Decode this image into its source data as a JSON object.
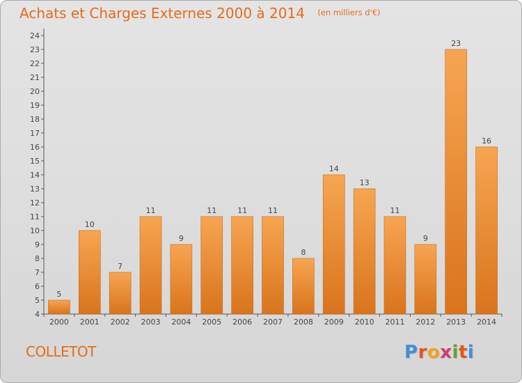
{
  "header": {
    "title": "Achats et Charges Externes 2000 à 2014",
    "subtitle": "(en milliers d'€)"
  },
  "footer": {
    "commune": "COLLETOT",
    "logo": {
      "letters": [
        "P",
        "r",
        "o",
        "x",
        "i",
        "t",
        "i"
      ]
    }
  },
  "colors": {
    "title": "#e66b1b",
    "bar_light": "#f7a552",
    "bar_dark": "#d9741c",
    "axis": "#555555"
  },
  "chart_data": {
    "type": "bar",
    "title": "Achats et Charges Externes 2000 à 2014",
    "subtitle": "(en milliers d'€)",
    "categories": [
      "2000",
      "2001",
      "2002",
      "2003",
      "2004",
      "2005",
      "2006",
      "2007",
      "2008",
      "2009",
      "2010",
      "2011",
      "2012",
      "2013",
      "2014"
    ],
    "values": [
      5,
      10,
      7,
      11,
      9,
      11,
      11,
      11,
      8,
      14,
      13,
      11,
      9,
      23,
      16
    ],
    "data_labels": [
      "5",
      "10",
      "7",
      "11",
      "9",
      "11",
      "11",
      "11",
      "8",
      "14",
      "13",
      "11",
      "9",
      "23",
      "16"
    ],
    "ylim": [
      4,
      24
    ],
    "yticks": [
      "4",
      "5",
      "6",
      "7",
      "8",
      "9",
      "10",
      "11",
      "12",
      "13",
      "14",
      "15",
      "16",
      "17",
      "18",
      "19",
      "20",
      "21",
      "22",
      "23",
      "24"
    ],
    "grid": false,
    "xlabel": "",
    "ylabel": ""
  }
}
